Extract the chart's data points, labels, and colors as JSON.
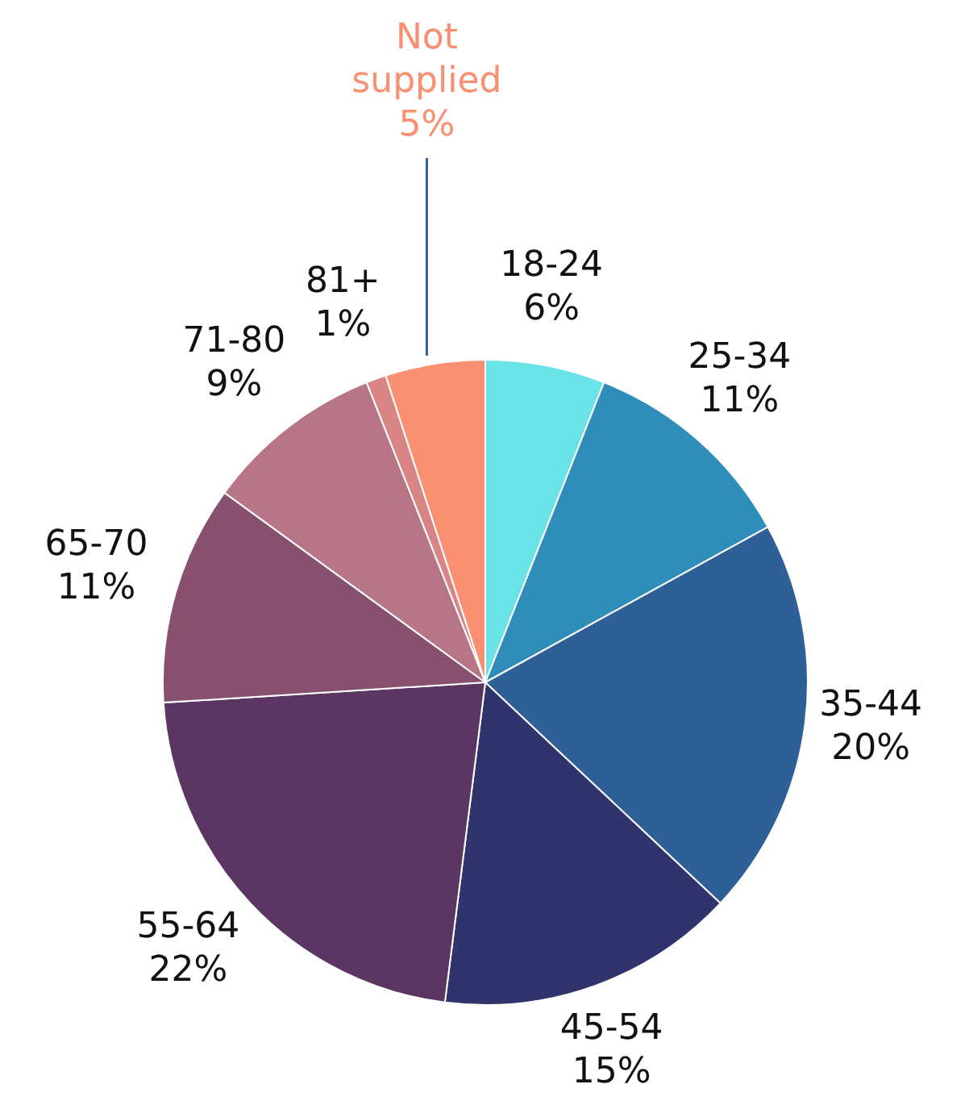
{
  "chart_data": {
    "type": "pie",
    "categories": [
      "18-24",
      "25-34",
      "35-44",
      "45-54",
      "55-64",
      "65-70",
      "71-80",
      "81+",
      "Not supplied"
    ],
    "values": [
      6,
      11,
      20,
      15,
      22,
      11,
      9,
      1,
      5
    ],
    "value_labels": [
      "6%",
      "11%",
      "20%",
      "15%",
      "22%",
      "11%",
      "9%",
      "1%",
      "5%"
    ],
    "colors": [
      "#6ae3e8",
      "#2e8db9",
      "#2e5f96",
      "#2f346c",
      "#5c3662",
      "#87506f",
      "#b87585",
      "#d98586",
      "#fa8f72"
    ]
  }
}
